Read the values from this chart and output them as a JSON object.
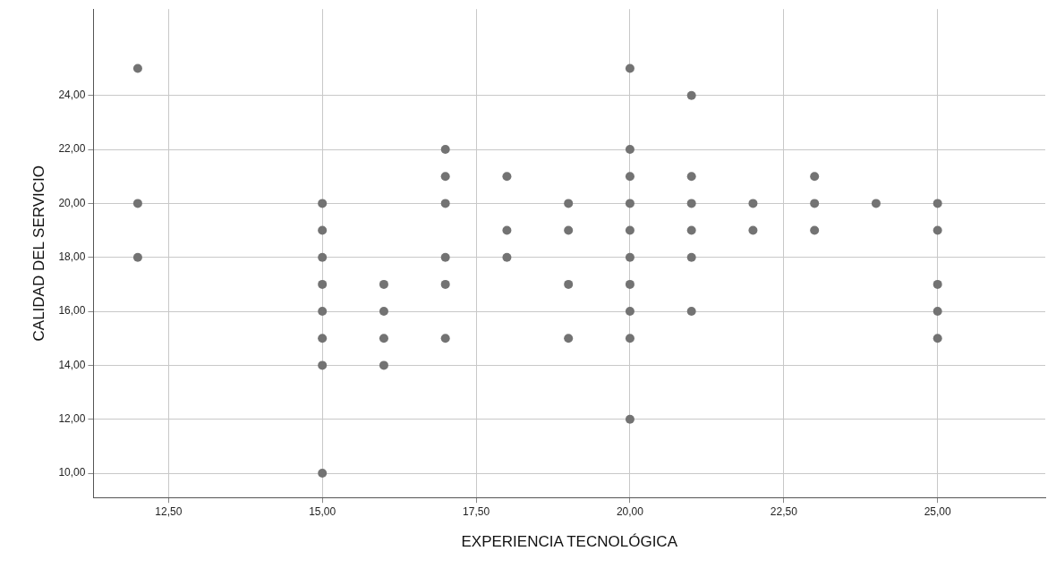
{
  "chart_data": {
    "type": "scatter",
    "xlabel": "EXPERIENCIA TECNOLÓGICA",
    "ylabel": "CALIDAD DEL SERVICIO",
    "x": [
      12,
      12,
      12,
      15,
      15,
      15,
      15,
      15,
      15,
      15,
      15,
      16,
      16,
      16,
      16,
      17,
      17,
      17,
      17,
      17,
      17,
      18,
      18,
      18,
      19,
      19,
      19,
      19,
      20,
      20,
      20,
      20,
      20,
      20,
      20,
      20,
      20,
      20,
      21,
      21,
      21,
      21,
      21,
      21,
      22,
      22,
      23,
      23,
      23,
      24,
      25,
      25,
      25,
      25,
      25
    ],
    "series": [
      {
        "color": "#737373",
        "values": [
          25,
          20,
          18,
          20,
          19,
          18,
          17,
          16,
          15,
          14,
          10,
          17,
          16,
          15,
          14,
          22,
          21,
          20,
          18,
          17,
          15,
          21,
          19,
          18,
          20,
          19,
          17,
          15,
          25,
          22,
          21,
          20,
          19,
          18,
          17,
          16,
          15,
          12,
          24,
          21,
          20,
          19,
          18,
          16,
          20,
          19,
          21,
          20,
          19,
          20,
          20,
          19,
          17,
          16,
          15
        ]
      }
    ],
    "xlim": [
      11.28,
      26.75
    ],
    "ylim": [
      9.1,
      27.2
    ],
    "xticks": [
      {
        "value": 12.5,
        "label": "12,50"
      },
      {
        "value": 15,
        "label": "15,00"
      },
      {
        "value": 17.5,
        "label": "17,50"
      },
      {
        "value": 20,
        "label": "20,00"
      },
      {
        "value": 22.5,
        "label": "22,50"
      },
      {
        "value": 25,
        "label": "25,00"
      }
    ],
    "yticks": [
      {
        "value": 10,
        "label": "10,00"
      },
      {
        "value": 12,
        "label": "12,00"
      },
      {
        "value": 14,
        "label": "14,00"
      },
      {
        "value": 16,
        "label": "16,00"
      },
      {
        "value": 18,
        "label": "18,00"
      },
      {
        "value": 20,
        "label": "20,00"
      },
      {
        "value": 22,
        "label": "22,00"
      },
      {
        "value": 24,
        "label": "24,00"
      }
    ],
    "grid": true,
    "legend": false,
    "marker": "circle"
  }
}
